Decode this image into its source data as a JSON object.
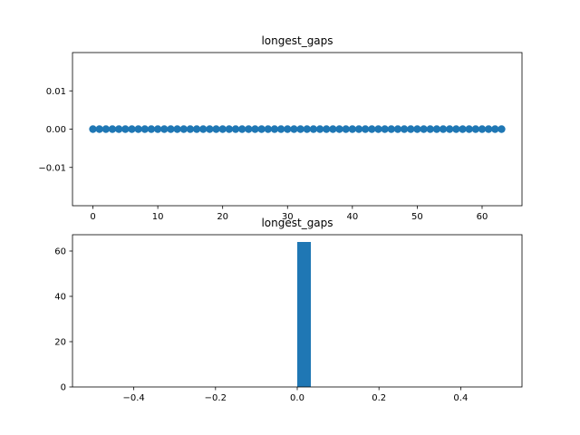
{
  "chart_data": [
    {
      "type": "scatter",
      "title": "longest_gaps",
      "xlabel": "",
      "ylabel": "",
      "xlim": [
        -3.15,
        66.15
      ],
      "ylim": [
        -0.02,
        0.02
      ],
      "xticks": [
        0,
        10,
        20,
        30,
        40,
        50,
        60
      ],
      "xtick_labels": [
        "0",
        "10",
        "20",
        "30",
        "40",
        "50",
        "60"
      ],
      "yticks": [
        -0.01,
        0.0,
        0.01
      ],
      "ytick_labels": [
        "−0.01",
        "0.00",
        "0.01"
      ],
      "grid": false,
      "color": "#1f77b4",
      "x": [
        0,
        1,
        2,
        3,
        4,
        5,
        6,
        7,
        8,
        9,
        10,
        11,
        12,
        13,
        14,
        15,
        16,
        17,
        18,
        19,
        20,
        21,
        22,
        23,
        24,
        25,
        26,
        27,
        28,
        29,
        30,
        31,
        32,
        33,
        34,
        35,
        36,
        37,
        38,
        39,
        40,
        41,
        42,
        43,
        44,
        45,
        46,
        47,
        48,
        49,
        50,
        51,
        52,
        53,
        54,
        55,
        56,
        57,
        58,
        59,
        60,
        61,
        62,
        63
      ],
      "y": [
        0,
        0,
        0,
        0,
        0,
        0,
        0,
        0,
        0,
        0,
        0,
        0,
        0,
        0,
        0,
        0,
        0,
        0,
        0,
        0,
        0,
        0,
        0,
        0,
        0,
        0,
        0,
        0,
        0,
        0,
        0,
        0,
        0,
        0,
        0,
        0,
        0,
        0,
        0,
        0,
        0,
        0,
        0,
        0,
        0,
        0,
        0,
        0,
        0,
        0,
        0,
        0,
        0,
        0,
        0,
        0,
        0,
        0,
        0,
        0,
        0,
        0,
        0,
        0
      ]
    },
    {
      "type": "bar",
      "title": "longest_gaps",
      "xlabel": "",
      "ylabel": "",
      "xlim": [
        -0.55,
        0.55
      ],
      "ylim": [
        0,
        67.2
      ],
      "xticks": [
        -0.4,
        -0.2,
        0.0,
        0.2,
        0.4
      ],
      "xtick_labels": [
        "−0.4",
        "−0.2",
        "0.0",
        "0.2",
        "0.4"
      ],
      "yticks": [
        0,
        20,
        40,
        60
      ],
      "ytick_labels": [
        "0",
        "20",
        "40",
        "60"
      ],
      "grid": false,
      "color": "#1f77b4",
      "bins": [
        {
          "start": -0.5,
          "end": 0.0,
          "count": 0
        },
        {
          "start": 0.0,
          "end": 0.0333,
          "count": 64
        },
        {
          "start": 0.0333,
          "end": 0.5,
          "count": 0
        }
      ]
    }
  ]
}
